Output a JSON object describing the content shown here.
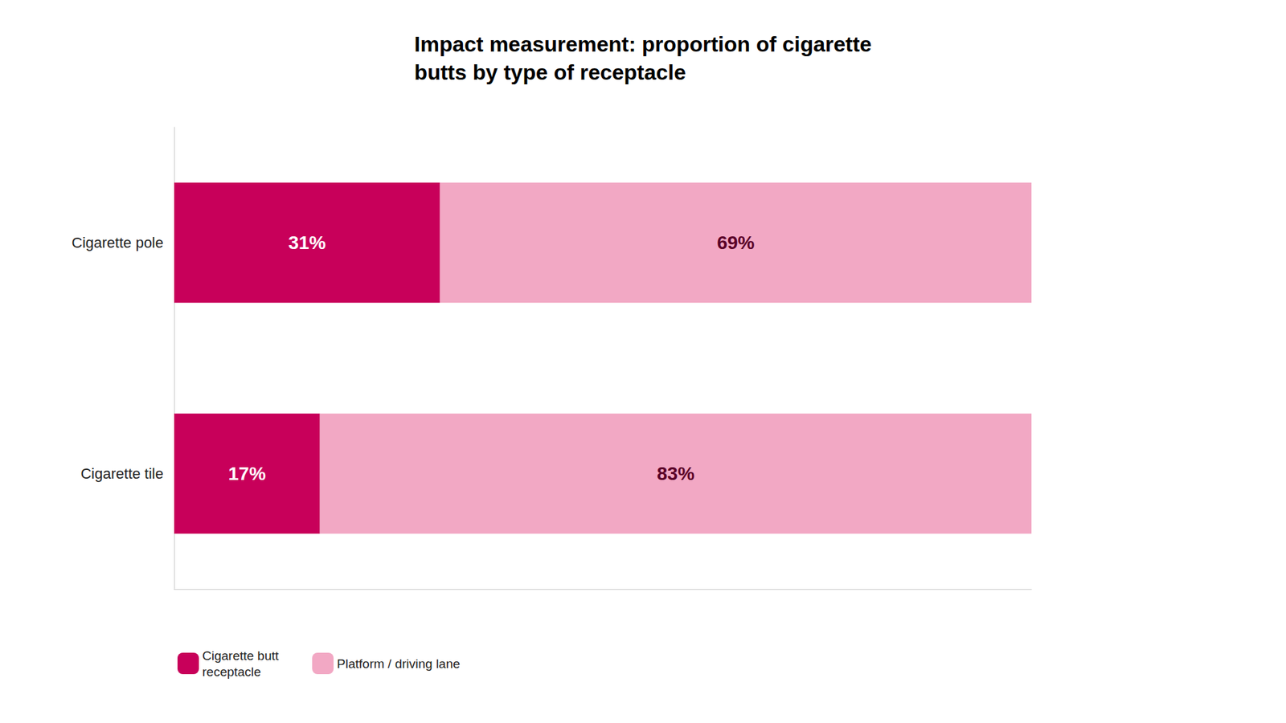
{
  "chart_data": {
    "type": "bar",
    "orientation": "horizontal",
    "stacked": true,
    "title": "Impact measurement: proportion of cigarette\nbutts by type of receptacle",
    "categories": [
      "Cigarette pole",
      "Cigarette tile"
    ],
    "series": [
      {
        "name": "Cigarette butt\nreceptacle",
        "color": "#C8005A",
        "values": [
          31,
          17
        ],
        "value_labels": [
          "31%",
          "17%"
        ]
      },
      {
        "name": "Platform / driving lane",
        "color": "#F2A8C4",
        "values": [
          69,
          83
        ],
        "value_labels": [
          "69%",
          "83%"
        ]
      }
    ],
    "xlim": [
      0,
      100
    ],
    "grid": false,
    "legend": "bottom",
    "data_labels": true,
    "tick_labels": "y"
  }
}
